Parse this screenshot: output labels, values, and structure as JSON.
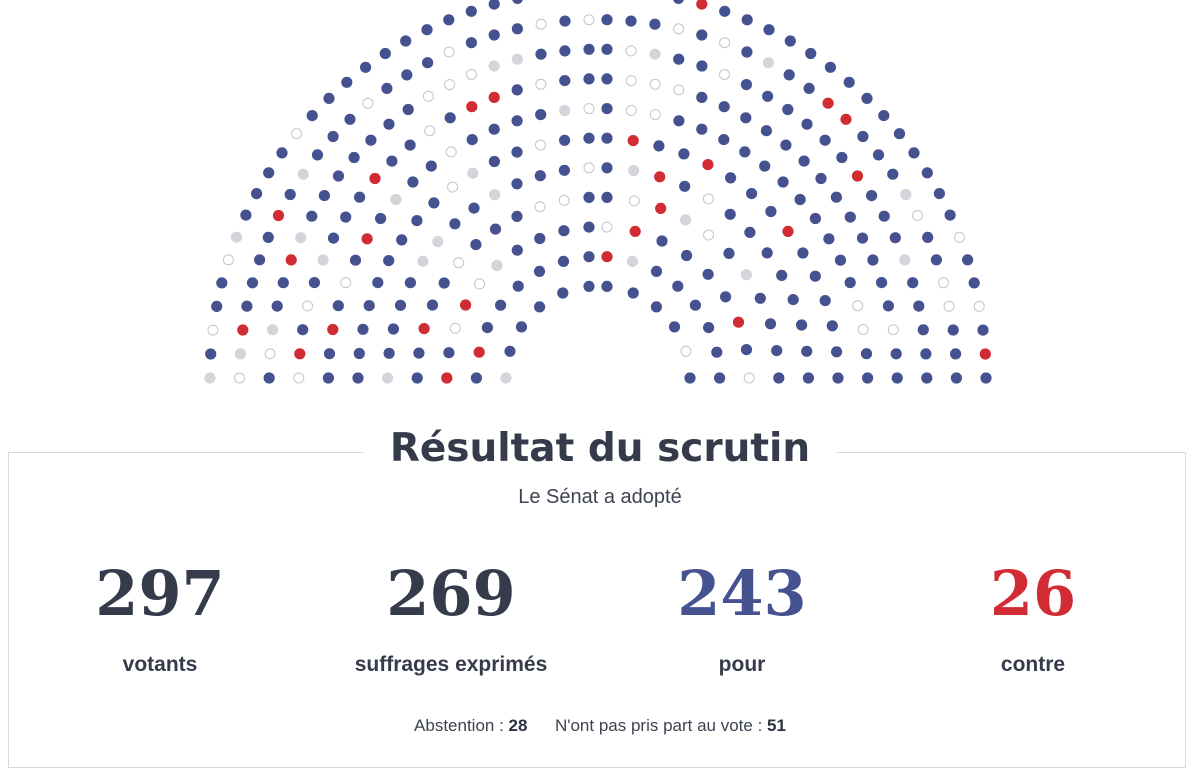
{
  "chart_data": {
    "type": "hemicycle",
    "seat_colors": {
      "pour": "#46528f",
      "contre": "#d12b33",
      "abstention": "#d3d5da",
      "non_votant": "#ffffff"
    },
    "seats": {
      "pour": 243,
      "contre": 26,
      "abstention": 28,
      "non_votant": 51
    },
    "total_seats": 348
  },
  "result": {
    "title": "Résultat du scrutin",
    "subtitle": "Le Sénat a adopté",
    "stats": [
      {
        "value": "297",
        "label": "votants",
        "color": "#353b4b"
      },
      {
        "value": "269",
        "label": "suffrages exprimés",
        "color": "#353b4b"
      },
      {
        "value": "243",
        "label": "pour",
        "color": "#46528f"
      },
      {
        "value": "26",
        "label": "contre",
        "color": "#d12b33"
      }
    ],
    "abstention_label": "Abstention :",
    "abstention_value": "28",
    "non_votant_label": "N'ont pas pris part au vote :",
    "non_votant_value": "51"
  }
}
